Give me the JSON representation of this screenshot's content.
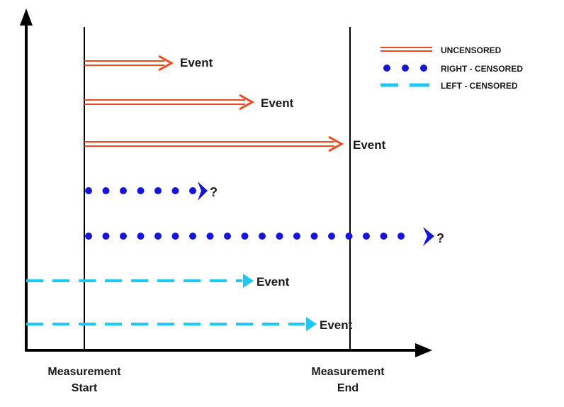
{
  "legend": {
    "uncensored": "UNCENSORED",
    "right_censored": "RIGHT - CENSORED",
    "left_censored": "LEFT - CENSORED"
  },
  "labels": {
    "measurement_start_line1": "Measurement",
    "measurement_start_line2": "Start",
    "measurement_end_line1": "Measurement",
    "measurement_end_line2": "End"
  },
  "rows": [
    {
      "type": "uncensored",
      "label": "Event"
    },
    {
      "type": "uncensored",
      "label": "Event"
    },
    {
      "type": "uncensored",
      "label": "Event"
    },
    {
      "type": "right_censored",
      "label": "?"
    },
    {
      "type": "right_censored",
      "label": "?"
    },
    {
      "type": "left_censored",
      "label": "Event"
    },
    {
      "type": "left_censored",
      "label": "Event"
    }
  ],
  "colors": {
    "uncensored": "#ee4a1d",
    "right_censored": "#1515dd",
    "left_censored": "#1ec8f4",
    "axis": "#000000"
  }
}
